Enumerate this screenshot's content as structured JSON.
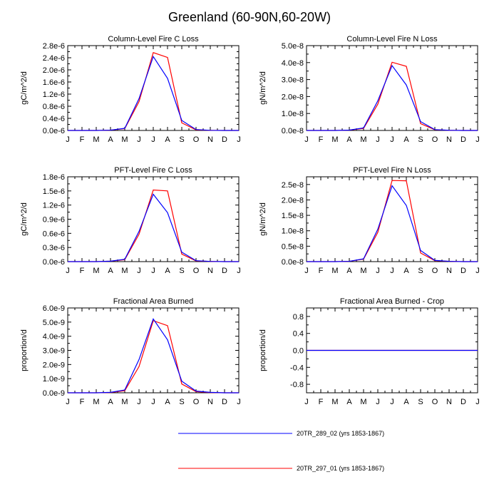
{
  "figure": {
    "title": "Greenland (60-90N,60-20W)",
    "month_labels": [
      "J",
      "F",
      "M",
      "A",
      "M",
      "J",
      "J",
      "A",
      "S",
      "O",
      "N",
      "D",
      "J"
    ]
  },
  "legend": [
    {
      "name": "20TR_289_02 (yrs 1853-1867)",
      "color": "#0000ff"
    },
    {
      "name": "20TR_297_01 (yrs 1853-1867)",
      "color": "#ff0000"
    }
  ],
  "chart_data": [
    {
      "type": "line",
      "title": "Column-Level Fire C Loss",
      "xlabel": "",
      "ylabel": "gC/m^2/d",
      "ylim": [
        0,
        2.8e-06
      ],
      "yticks": [
        0,
        4e-07,
        8e-07,
        1.2e-06,
        1.6e-06,
        2e-06,
        2.4e-06,
        2.8e-06
      ],
      "ytick_labels": [
        "0.0e-6",
        "0.4e-6",
        "0.8e-6",
        "1.2e-6",
        "1.6e-6",
        "2.0e-6",
        "2.4e-6",
        "2.8e-6"
      ],
      "series": [
        {
          "color": "#0000ff",
          "values": [
            0,
            0,
            0,
            1e-08,
            7e-08,
            1.05e-06,
            2.44e-06,
            1.72e-06,
            3.3e-07,
            3e-08,
            5e-09,
            0,
            0
          ]
        },
        {
          "color": "#ff0000",
          "values": [
            0,
            0,
            0,
            1e-08,
            6e-08,
            9.5e-07,
            2.57e-06,
            2.41e-06,
            2.5e-07,
            2e-08,
            5e-09,
            0,
            0
          ]
        }
      ]
    },
    {
      "type": "line",
      "title": "Column-Level Fire N Loss",
      "xlabel": "",
      "ylabel": "gN/m^2/d",
      "ylim": [
        0,
        5e-08
      ],
      "yticks": [
        0,
        1e-08,
        2e-08,
        3e-08,
        4e-08,
        5e-08
      ],
      "ytick_labels": [
        "0.0e-8",
        "1.0e-8",
        "2.0e-8",
        "3.0e-8",
        "4.0e-8",
        "5.0e-8"
      ],
      "series": [
        {
          "color": "#0000ff",
          "values": [
            0,
            0,
            0,
            2e-10,
            1.5e-09,
            1.75e-08,
            3.82e-08,
            2.68e-08,
            5.2e-09,
            5e-10,
            1e-10,
            0,
            0
          ]
        },
        {
          "color": "#ff0000",
          "values": [
            0,
            0,
            0,
            2e-10,
            1.2e-09,
            1.55e-08,
            4.02e-08,
            3.78e-08,
            4e-09,
            4e-10,
            1e-10,
            0,
            0
          ]
        }
      ]
    },
    {
      "type": "line",
      "title": "PFT-Level Fire C Loss",
      "xlabel": "",
      "ylabel": "gC/m^2/d",
      "ylim": [
        0,
        1.8e-06
      ],
      "yticks": [
        0,
        3e-07,
        6e-07,
        9e-07,
        1.2e-06,
        1.5e-06,
        1.8e-06
      ],
      "ytick_labels": [
        "0.0e-6",
        "0.3e-6",
        "0.6e-6",
        "0.9e-6",
        "1.2e-6",
        "1.5e-6",
        "1.8e-6"
      ],
      "series": [
        {
          "color": "#0000ff",
          "values": [
            0,
            0,
            0,
            1e-08,
            5e-08,
            6.4e-07,
            1.43e-06,
            1.04e-06,
            2e-07,
            2e-08,
            5e-09,
            0,
            0
          ]
        },
        {
          "color": "#ff0000",
          "values": [
            0,
            0,
            0,
            1e-08,
            4e-08,
            5.8e-07,
            1.52e-06,
            1.5e-06,
            1.6e-07,
            1.5e-08,
            5e-09,
            0,
            0
          ]
        }
      ]
    },
    {
      "type": "line",
      "title": "PFT-Level Fire N Loss",
      "xlabel": "",
      "ylabel": "gN/m^2/d",
      "ylim": [
        0,
        2.75e-08
      ],
      "yticks": [
        0,
        5e-09,
        1e-08,
        1.5e-08,
        2e-08,
        2.5e-08
      ],
      "ytick_labels": [
        "0.0e-8",
        "0.5e-8",
        "1.0e-8",
        "1.5e-8",
        "2.0e-8",
        "2.5e-8"
      ],
      "series": [
        {
          "color": "#0000ff",
          "values": [
            0,
            0,
            0,
            1e-10,
            9e-10,
            1.05e-08,
            2.46e-08,
            1.82e-08,
            3.6e-09,
            4e-10,
            1e-10,
            0,
            0
          ]
        },
        {
          "color": "#ff0000",
          "values": [
            0,
            0,
            0,
            1e-10,
            8e-10,
            9.5e-09,
            2.63e-08,
            2.62e-08,
            2.8e-09,
            3e-10,
            1e-10,
            0,
            0
          ]
        }
      ]
    },
    {
      "type": "line",
      "title": "Fractional Area Burned",
      "xlabel": "",
      "ylabel": "proportion/d",
      "ylim": [
        0,
        6e-09
      ],
      "yticks": [
        0,
        1e-09,
        2e-09,
        3e-09,
        4e-09,
        5e-09,
        6e-09
      ],
      "ytick_labels": [
        "0.0e-9",
        "1.0e-9",
        "2.0e-9",
        "3.0e-9",
        "4.0e-9",
        "5.0e-9",
        "6.0e-9"
      ],
      "series": [
        {
          "color": "#0000ff",
          "values": [
            0,
            0,
            0,
            3e-11,
            2e-10,
            2.35e-09,
            5.22e-09,
            3.75e-09,
            8.2e-10,
            1.2e-10,
            3e-11,
            0,
            0
          ]
        },
        {
          "color": "#ff0000",
          "values": [
            0,
            0,
            0,
            2e-11,
            1.5e-10,
            1.85e-09,
            5.1e-09,
            4.75e-09,
            6.2e-10,
            8e-11,
            2e-11,
            0,
            0
          ]
        }
      ]
    },
    {
      "type": "line",
      "title": "Fractional Area Burned - Crop",
      "xlabel": "",
      "ylabel": "proportion/d",
      "ylim": [
        -1.0,
        1.0
      ],
      "yticks": [
        -0.8,
        -0.4,
        0,
        0.4,
        0.8
      ],
      "ytick_labels": [
        "-0.8",
        "-0.4",
        "0.0",
        "0.4",
        "0.8"
      ],
      "series": [
        {
          "color": "#ff0000",
          "values": [
            0,
            0,
            0,
            0,
            0,
            0,
            0,
            0,
            0,
            0,
            0,
            0,
            0
          ]
        },
        {
          "color": "#0000ff",
          "values": [
            0,
            0,
            0,
            0,
            0,
            0,
            0,
            0,
            0,
            0,
            0,
            0,
            0
          ]
        }
      ]
    }
  ]
}
